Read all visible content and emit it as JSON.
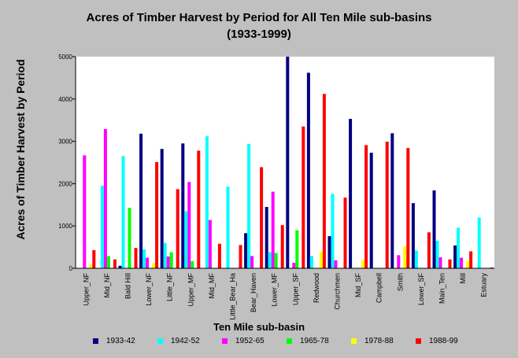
{
  "chart_data": {
    "type": "bar",
    "title": "Acres of Timber Harvest by Period for All Ten Mile sub-basins",
    "subtitle": "(1933-1999)",
    "xlabel": "Ten Mile sub-basin",
    "ylabel": "Acres of Timber Harvest by Period",
    "ylim": [
      0,
      5000
    ],
    "yticks": [
      0,
      1000,
      2000,
      3000,
      4000,
      5000
    ],
    "grid": false,
    "legend_position": "bottom",
    "categories": [
      "Upper_NF",
      "Mid_NF",
      "Bald Hill",
      "Lower_NF",
      "Little_NF",
      "Upper_MF",
      "Mid_MF",
      "Little_Bear_Ha",
      "Bear_Haven",
      "Lower_MF",
      "Upper_SF",
      "Redwood",
      "Churchmen",
      "Mid_SF",
      "Campbell",
      "Smith",
      "Lower_SF",
      "Main_Ten",
      "Mill",
      "Estuary"
    ],
    "series": [
      {
        "name": "1933-42",
        "color": "#000080",
        "values": [
          0,
          0,
          60,
          3180,
          2820,
          2950,
          0,
          0,
          830,
          1450,
          5000,
          4620,
          760,
          3530,
          2730,
          3190,
          1540,
          1840,
          540,
          0
        ]
      },
      {
        "name": "1942-52",
        "color": "#00ffff",
        "values": [
          0,
          1950,
          2650,
          450,
          600,
          1350,
          3120,
          1930,
          2940,
          380,
          0,
          290,
          1760,
          0,
          0,
          0,
          420,
          650,
          960,
          1200
        ]
      },
      {
        "name": "1952-65",
        "color": "#ff00ff",
        "values": [
          2670,
          3290,
          0,
          250,
          280,
          2040,
          1140,
          0,
          290,
          1810,
          130,
          0,
          190,
          0,
          0,
          310,
          0,
          260,
          250,
          0
        ]
      },
      {
        "name": "1965-78",
        "color": "#00ff00",
        "values": [
          0,
          290,
          1430,
          0,
          380,
          170,
          0,
          0,
          0,
          360,
          900,
          0,
          0,
          0,
          0,
          0,
          0,
          0,
          0,
          0
        ]
      },
      {
        "name": "1978-88",
        "color": "#ffff00",
        "values": [
          90,
          0,
          0,
          120,
          0,
          0,
          0,
          0,
          0,
          0,
          0,
          390,
          0,
          200,
          0,
          520,
          0,
          0,
          170,
          0
        ]
      },
      {
        "name": "1988-99",
        "color": "#ff0000",
        "values": [
          430,
          210,
          480,
          2510,
          1870,
          2780,
          580,
          550,
          2390,
          1020,
          3350,
          4120,
          1670,
          2910,
          2990,
          2840,
          850,
          210,
          400,
          20
        ]
      }
    ]
  }
}
